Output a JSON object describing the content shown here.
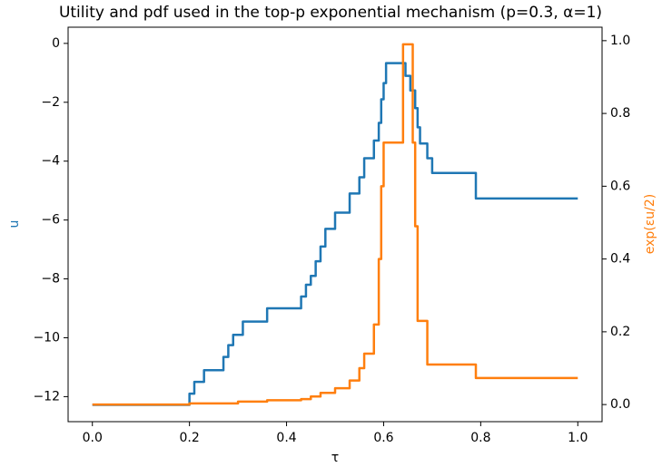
{
  "chart_data": {
    "type": "line",
    "title": "Utility and pdf used in the top-p exponential mechanism (p=0.3, α=1)",
    "x_label": "τ",
    "y_label": "u",
    "y2_label": "exp(εu/2)",
    "xlim": [
      -0.05,
      1.05
    ],
    "ylim": [
      -12.85,
      0.55
    ],
    "y2lim": [
      -0.047,
      1.037
    ],
    "xticks": [
      {
        "value": 0,
        "label": "0.0"
      },
      {
        "value": 0.2,
        "label": "0.2"
      },
      {
        "value": 0.4,
        "label": "0.4"
      },
      {
        "value": 0.6,
        "label": "0.6"
      },
      {
        "value": 0.8,
        "label": "0.8"
      },
      {
        "value": 1,
        "label": "1.0"
      }
    ],
    "yticks": [
      {
        "value": -12,
        "label": "−12"
      },
      {
        "value": -10,
        "label": "−10"
      },
      {
        "value": -8,
        "label": "−8"
      },
      {
        "value": -6,
        "label": "−6"
      },
      {
        "value": -4,
        "label": "−4"
      },
      {
        "value": -2,
        "label": "−2"
      },
      0
    ],
    "y2ticks": [
      {
        "value": 0,
        "label": "0.0"
      },
      {
        "value": 0.2,
        "label": "0.2"
      },
      {
        "value": 0.4,
        "label": "0.4"
      },
      {
        "value": 0.6,
        "label": "0.6"
      },
      {
        "value": 0.8,
        "label": "0.8"
      },
      {
        "value": 1,
        "label": "1.0"
      }
    ],
    "series": [
      {
        "color": "#1f77b4",
        "axis": "y",
        "x": [
          0,
          0.2,
          0.2,
          0.21,
          0.21,
          0.23,
          0.23,
          0.27,
          0.27,
          0.28,
          0.28,
          0.29,
          0.29,
          0.31,
          0.31,
          0.36,
          0.36,
          0.43,
          0.43,
          0.44,
          0.44,
          0.45,
          0.45,
          0.46,
          0.46,
          0.47,
          0.47,
          0.48,
          0.48,
          0.5,
          0.5,
          0.53,
          0.53,
          0.55,
          0.55,
          0.56,
          0.56,
          0.58,
          0.58,
          0.59,
          0.59,
          0.595,
          0.595,
          0.6,
          0.6,
          0.605,
          0.605,
          0.645,
          0.645,
          0.655,
          0.655,
          0.665,
          0.665,
          0.67,
          0.67,
          0.675,
          0.675,
          0.69,
          0.69,
          0.7,
          0.7,
          0.79,
          0.79,
          1.0
        ],
        "values": [
          -12.28,
          -12.28,
          -11.9,
          -11.9,
          -11.5,
          -11.5,
          -11.1,
          -11.1,
          -10.65,
          -10.65,
          -10.25,
          -10.25,
          -9.9,
          -9.9,
          -9.45,
          -9.45,
          -9.0,
          -9.0,
          -8.6,
          -8.6,
          -8.2,
          -8.2,
          -7.9,
          -7.9,
          -7.4,
          -7.4,
          -6.9,
          -6.9,
          -6.3,
          -6.3,
          -5.75,
          -5.75,
          -5.1,
          -5.1,
          -4.55,
          -4.55,
          -3.9,
          -3.9,
          -3.3,
          -3.3,
          -2.7,
          -2.7,
          -1.9,
          -1.9,
          -1.35,
          -1.35,
          -0.67,
          -0.67,
          -1.1,
          -1.1,
          -1.6,
          -1.6,
          -2.2,
          -2.2,
          -2.85,
          -2.85,
          -3.4,
          -3.4,
          -3.9,
          -3.9,
          -4.4,
          -4.4,
          -5.27,
          -5.27
        ]
      },
      {
        "color": "#ff7f0e",
        "axis": "y2",
        "x": [
          0,
          0.2,
          0.2,
          0.3,
          0.3,
          0.36,
          0.36,
          0.43,
          0.43,
          0.45,
          0.45,
          0.47,
          0.47,
          0.5,
          0.5,
          0.53,
          0.53,
          0.55,
          0.55,
          0.56,
          0.56,
          0.58,
          0.58,
          0.59,
          0.59,
          0.595,
          0.595,
          0.6,
          0.6,
          0.64,
          0.64,
          0.66,
          0.66,
          0.665,
          0.665,
          0.67,
          0.67,
          0.69,
          0.69,
          0.79,
          0.79,
          1.0
        ],
        "values": [
          0,
          0,
          0.003,
          0.003,
          0.008,
          0.008,
          0.012,
          0.012,
          0.015,
          0.015,
          0.022,
          0.022,
          0.032,
          0.032,
          0.045,
          0.045,
          0.066,
          0.066,
          0.1,
          0.1,
          0.14,
          0.14,
          0.22,
          0.22,
          0.4,
          0.4,
          0.6,
          0.6,
          0.72,
          0.72,
          0.99,
          0.99,
          0.72,
          0.72,
          0.49,
          0.49,
          0.23,
          0.23,
          0.11,
          0.11,
          0.073,
          0.073
        ]
      }
    ]
  }
}
